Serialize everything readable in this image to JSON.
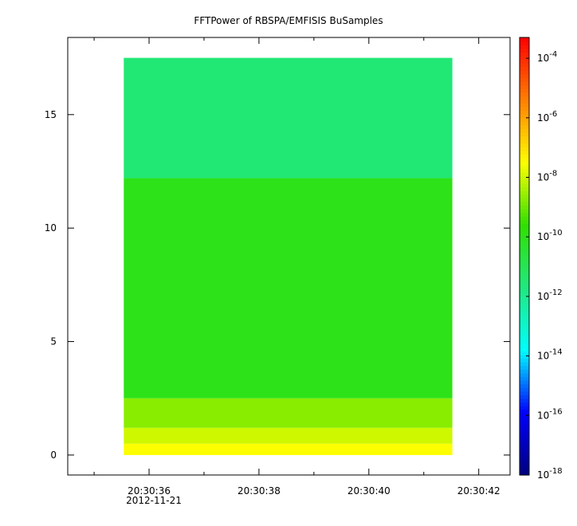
{
  "chart_data": {
    "type": "spectrogram",
    "title": "FFTPower of RBSPA/EMFISIS  BuSamples",
    "date_label": "2012-11-21",
    "xlim": [
      34.52,
      42.57
    ],
    "xticks": [
      {
        "value": 36,
        "label": "20:30:36"
      },
      {
        "value": 38,
        "label": "20:30:38"
      },
      {
        "value": 40,
        "label": "20:30:40"
      },
      {
        "value": 42,
        "label": "20:30:42"
      }
    ],
    "xminor": [
      35,
      37,
      39,
      41
    ],
    "ylim": [
      -0.88,
      18.4
    ],
    "yticks": [
      0,
      5,
      10,
      15
    ],
    "x": [
      35.54,
      41.52
    ],
    "bands": [
      {
        "y0": 0,
        "y1": 0.5,
        "value": 3e-08
      },
      {
        "y0": 0.5,
        "y1": 1.2,
        "value": 1e-08
      },
      {
        "y0": 1.2,
        "y1": 2.5,
        "value": 2e-09
      },
      {
        "y0": 2.5,
        "y1": 12.2,
        "value": 1e-10
      },
      {
        "y0": 12.2,
        "y1": 17.5,
        "value": 3e-12
      }
    ],
    "zlim": [
      1e-18,
      0.0005
    ],
    "zlog": true,
    "colorscale": [
      "#00007f",
      "#0000ff",
      "#00ffff",
      "#20e880",
      "#30e000",
      "#ffff00",
      "#ff8000",
      "#ff0000"
    ],
    "zticks": [
      {
        "value": 0.0001,
        "label": "10-4"
      },
      {
        "value": 1e-06,
        "label": "10-6"
      },
      {
        "value": 1e-08,
        "label": "10-8"
      },
      {
        "value": 1e-10,
        "label": "10-10"
      },
      {
        "value": 1e-12,
        "label": "10-12"
      },
      {
        "value": 1e-14,
        "label": "10-14"
      },
      {
        "value": 1e-16,
        "label": "10-16"
      },
      {
        "value": 1e-18,
        "label": "10-18"
      }
    ]
  }
}
